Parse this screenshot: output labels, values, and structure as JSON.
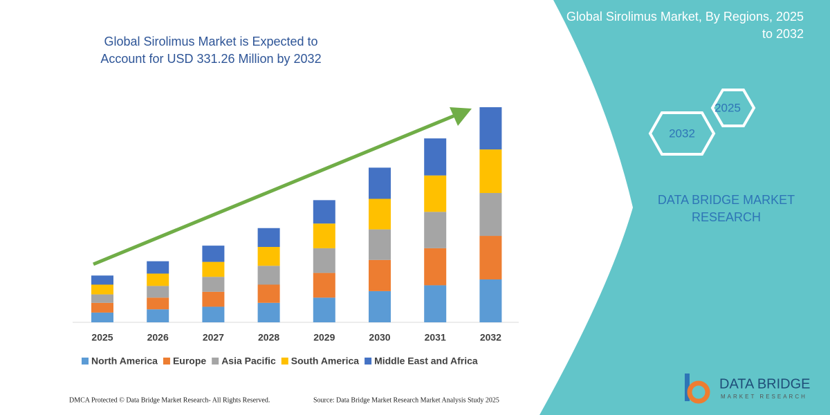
{
  "chart_data": {
    "type": "stacked_bar",
    "title": "Global Sirolimus Market is Expected to Account for USD 331.26 Million by 2032",
    "categories": [
      "2025",
      "2026",
      "2027",
      "2028",
      "2029",
      "2030",
      "2031",
      "2032"
    ],
    "series": [
      {
        "name": "North America",
        "color": "#5b9bd5",
        "values": [
          15,
          20,
          24,
          30,
          38,
          48,
          57,
          66
        ]
      },
      {
        "name": "Europe",
        "color": "#ed7d31",
        "values": [
          15,
          18,
          23,
          28,
          38,
          48,
          57,
          67
        ]
      },
      {
        "name": "Asia Pacific",
        "color": "#a5a5a5",
        "values": [
          13,
          18,
          23,
          29,
          38,
          47,
          56,
          66
        ]
      },
      {
        "name": "South America",
        "color": "#ffc000",
        "values": [
          15,
          19,
          23,
          29,
          38,
          47,
          56,
          67
        ]
      },
      {
        "name": "Middle East and Africa",
        "color": "#4472c4",
        "values": [
          14,
          19,
          25,
          29,
          36,
          48,
          57,
          65
        ]
      }
    ],
    "legend": "bottom"
  },
  "side_panel": {
    "title": "Global Sirolimus Market, By Regions, 2025 to 2032",
    "hex_labels": [
      "2025",
      "2032"
    ],
    "brand": "DATA BRIDGE MARKET RESEARCH"
  },
  "footer": {
    "left": "DMCA Protected © Data Bridge Market Research- All Rights Reserved.",
    "right": "Source: Data Bridge Market Research Market Analysis Study 2025"
  },
  "logo": {
    "name": "DATA BRIDGE",
    "tagline": "MARKET RESEARCH"
  }
}
